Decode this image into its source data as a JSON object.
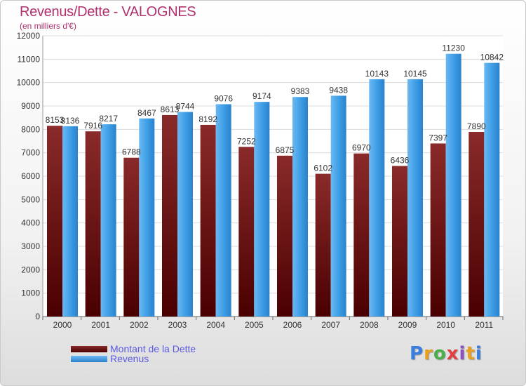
{
  "chart_data": {
    "type": "bar",
    "title": "Revenus/Dette - VALOGNES",
    "subtitle": "(en milliers d'€)",
    "categories": [
      "2000",
      "2001",
      "2002",
      "2003",
      "2004",
      "2005",
      "2006",
      "2007",
      "2008",
      "2009",
      "2010",
      "2011"
    ],
    "series": [
      {
        "name": "Montant de la Dette",
        "values": [
          8153,
          7916,
          6788,
          8613,
          8192,
          7252,
          6875,
          6102,
          6970,
          6436,
          7397,
          7890
        ],
        "color": "#7a2020"
      },
      {
        "name": "Revenus",
        "values": [
          8136,
          8217,
          8467,
          8744,
          9076,
          9174,
          9383,
          9438,
          10143,
          10145,
          11230,
          10842
        ],
        "color": "#3f9fe6"
      }
    ],
    "ylim": [
      0,
      12000
    ],
    "yticks": [
      0,
      1000,
      2000,
      3000,
      4000,
      5000,
      6000,
      7000,
      8000,
      9000,
      10000,
      11000,
      12000
    ],
    "grid": true,
    "legend": "bottom-left"
  },
  "logo": {
    "text": "Proxiti",
    "colors": [
      "#3a7ee0",
      "#e8a020",
      "#4ab04a",
      "#e04040",
      "#8a50c0",
      "#e8a020",
      "#3a7ee0"
    ]
  }
}
